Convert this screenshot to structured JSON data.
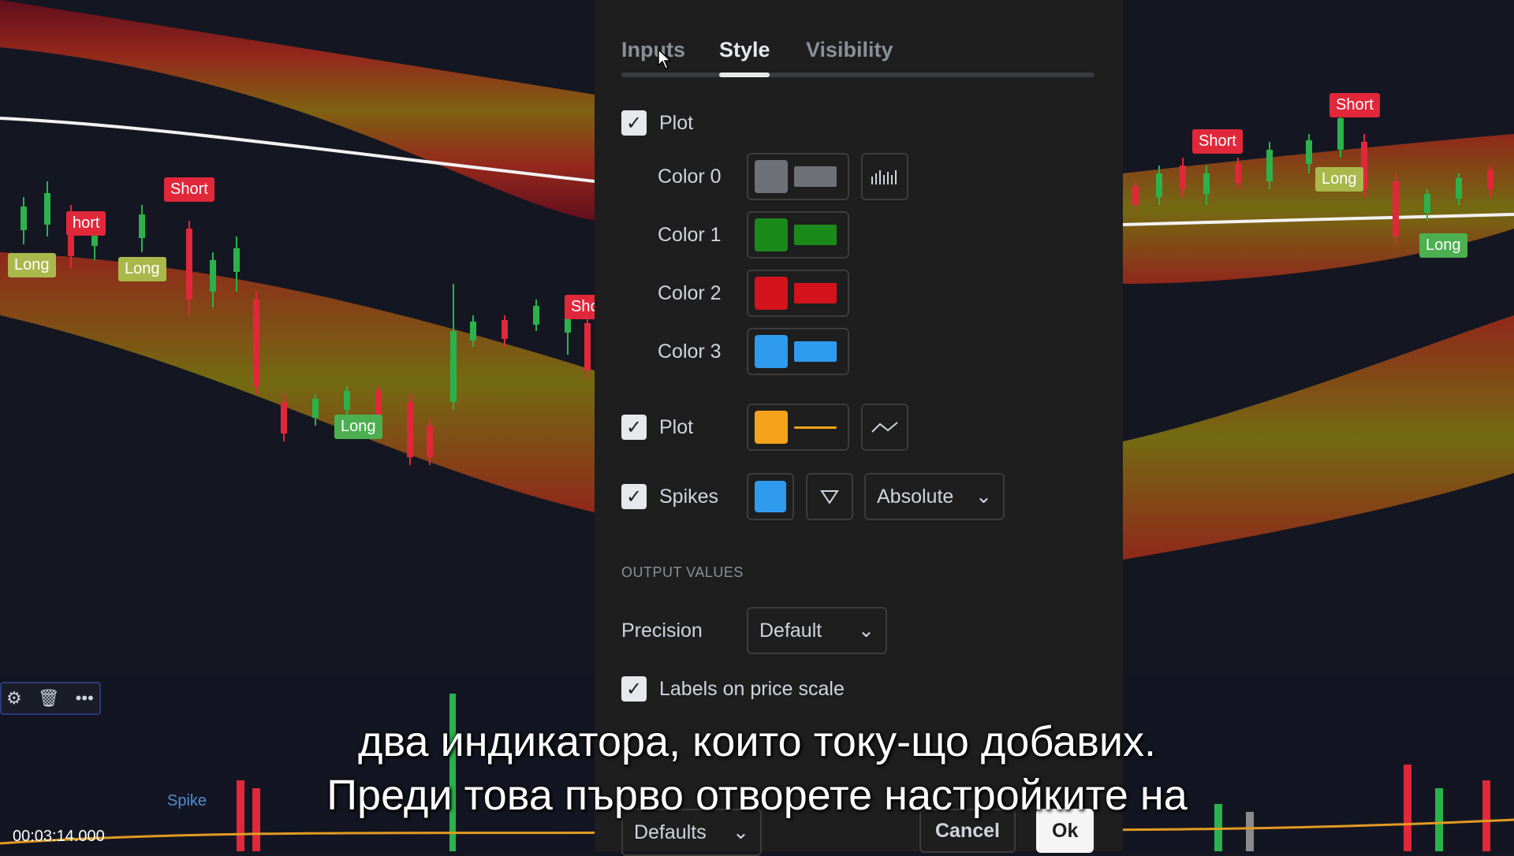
{
  "dialog": {
    "tabs": [
      {
        "label": "Inputs",
        "active": false
      },
      {
        "label": "Style",
        "active": true
      },
      {
        "label": "Visibility",
        "active": false
      }
    ],
    "plot1": {
      "label": "Plot",
      "checked": true
    },
    "colors": [
      {
        "label": "Color 0",
        "color": "#6f7178"
      },
      {
        "label": "Color 1",
        "color": "#1b8a1b"
      },
      {
        "label": "Color 2",
        "color": "#d3121c"
      },
      {
        "label": "Color 3",
        "color": "#2e9bef"
      }
    ],
    "plot2": {
      "label": "Plot",
      "checked": true,
      "color": "#f5a31a"
    },
    "spikes": {
      "label": "Spikes",
      "checked": true,
      "color": "#2e9bef",
      "mode": "Absolute"
    },
    "output_values_title": "OUTPUT VALUES",
    "precision": {
      "label": "Precision",
      "value": "Default"
    },
    "labels_on_price_scale": {
      "label": "Labels on price scale",
      "checked": true
    },
    "footer": {
      "defaults": "Defaults",
      "cancel": "Cancel",
      "ok": "Ok"
    }
  },
  "chart": {
    "signals": [
      {
        "text": "Short",
        "kind": "short"
      },
      {
        "text": "hort",
        "kind": "short"
      },
      {
        "text": "Long",
        "kind": "long-olive"
      },
      {
        "text": "Long",
        "kind": "long-olive"
      },
      {
        "text": "Long",
        "kind": "long"
      },
      {
        "text": "Sho",
        "kind": "short"
      },
      {
        "text": "Short",
        "kind": "short"
      },
      {
        "text": "Short",
        "kind": "short"
      },
      {
        "text": "Long",
        "kind": "long-olive"
      },
      {
        "text": "Long",
        "kind": "long"
      }
    ],
    "spike_label": "Spike"
  },
  "overlay": {
    "timestamp": "00:03:14.000",
    "subtitle_line1": "два индикатора, които току-що добавих.",
    "subtitle_line2": "Преди това първо отворете настройките на"
  }
}
